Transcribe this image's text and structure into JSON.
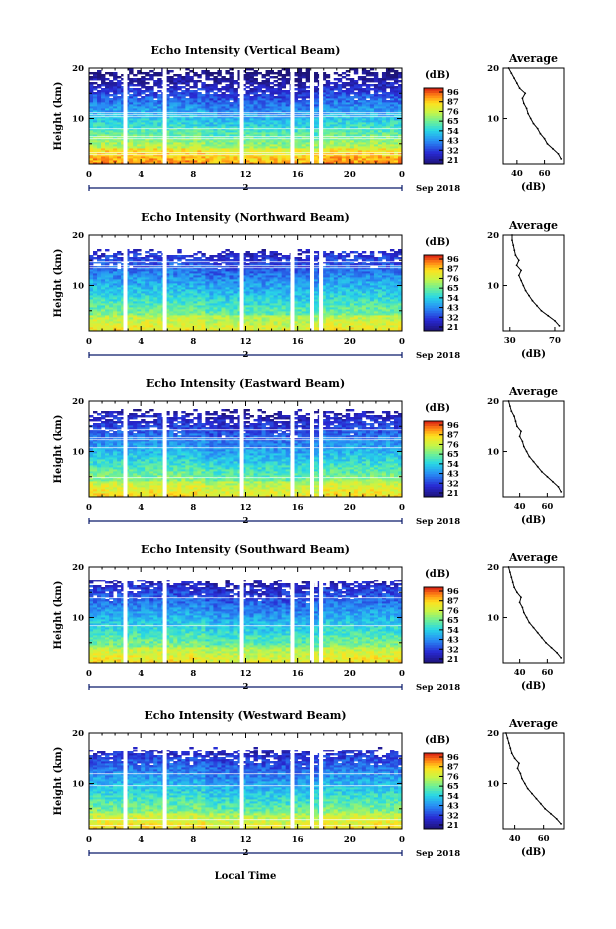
{
  "chart_data": [
    {
      "type": "heatmap",
      "title": "Echo Intensity (Vertical Beam)",
      "ylabel": "Height (km)",
      "xticks": [
        "0",
        "4",
        "8",
        "12",
        "16",
        "20",
        "0"
      ],
      "ylim": [
        1,
        20
      ],
      "yticks": [
        "10",
        "20"
      ],
      "date_marker": "2",
      "date_label": "Sep 2018",
      "colorbar": {
        "unit": "(dB)",
        "ticks": [
          "96",
          "87",
          "76",
          "65",
          "54",
          "43",
          "32",
          "21"
        ]
      },
      "gaps_hours": [
        2.8,
        5.8,
        11.7,
        15.6,
        17.1,
        17.8
      ],
      "profile": {
        "title": "Average",
        "xlabel": "(dB)",
        "xticks": [
          "40",
          "60"
        ],
        "xlim": [
          30,
          74
        ],
        "heights": [
          2,
          3,
          4,
          5,
          6,
          7,
          8,
          9,
          10,
          11,
          12,
          13,
          14,
          15,
          16,
          17,
          18,
          19,
          20
        ],
        "values": [
          72,
          70,
          66,
          62,
          60,
          57,
          55,
          52,
          50,
          48,
          47,
          45,
          44,
          46,
          42,
          40,
          38,
          36,
          34
        ]
      }
    },
    {
      "type": "heatmap",
      "title": "Echo Intensity (Northward Beam)",
      "ylabel": "Height (km)",
      "xticks": [
        "0",
        "4",
        "8",
        "12",
        "16",
        "20",
        "0"
      ],
      "ylim": [
        1,
        20
      ],
      "yticks": [
        "10",
        "20"
      ],
      "date_marker": "2",
      "date_label": "Sep 2018",
      "colorbar": {
        "unit": "(dB)",
        "ticks": [
          "96",
          "87",
          "76",
          "65",
          "54",
          "43",
          "32",
          "21"
        ]
      },
      "gaps_hours": [
        2.8,
        5.8,
        11.7,
        15.6,
        17.1,
        17.8
      ],
      "profile": {
        "title": "Average",
        "xlabel": "(dB)",
        "xticks": [
          "30",
          "70"
        ],
        "xlim": [
          24,
          78
        ],
        "heights": [
          2,
          3,
          4,
          5,
          6,
          7,
          8,
          9,
          10,
          11,
          12,
          13,
          14,
          15,
          16,
          17,
          18,
          19,
          20
        ],
        "values": [
          74,
          70,
          64,
          58,
          54,
          50,
          47,
          44,
          42,
          40,
          38,
          40,
          36,
          38,
          35,
          34,
          33,
          32,
          32
        ]
      }
    },
    {
      "type": "heatmap",
      "title": "Echo Intensity (Eastward Beam)",
      "ylabel": "Height (km)",
      "xticks": [
        "0",
        "4",
        "8",
        "12",
        "16",
        "20",
        "0"
      ],
      "ylim": [
        1,
        20
      ],
      "yticks": [
        "10",
        "20"
      ],
      "date_marker": "2",
      "date_label": "Sep 2018",
      "colorbar": {
        "unit": "(dB)",
        "ticks": [
          "96",
          "87",
          "76",
          "65",
          "54",
          "43",
          "32",
          "21"
        ]
      },
      "gaps_hours": [
        2.8,
        5.8,
        11.7,
        15.6,
        17.1,
        17.8
      ],
      "profile": {
        "title": "Average",
        "xlabel": "(dB)",
        "xticks": [
          "40",
          "60"
        ],
        "xlim": [
          28,
          72
        ],
        "heights": [
          2,
          3,
          4,
          5,
          6,
          7,
          8,
          9,
          10,
          11,
          12,
          13,
          14,
          15,
          16,
          17,
          18,
          19,
          20
        ],
        "values": [
          70,
          68,
          64,
          60,
          56,
          53,
          50,
          47,
          45,
          43,
          42,
          40,
          41,
          38,
          37,
          36,
          34,
          33,
          32
        ]
      }
    },
    {
      "type": "heatmap",
      "title": "Echo Intensity (Southward Beam)",
      "ylabel": "Height (km)",
      "xticks": [
        "0",
        "4",
        "8",
        "12",
        "16",
        "20",
        "0"
      ],
      "ylim": [
        1,
        20
      ],
      "yticks": [
        "10",
        "20"
      ],
      "date_marker": "2",
      "date_label": "Sep 2018",
      "colorbar": {
        "unit": "(dB)",
        "ticks": [
          "96",
          "87",
          "76",
          "65",
          "54",
          "43",
          "32",
          "21"
        ]
      },
      "gaps_hours": [
        2.8,
        5.8,
        11.7,
        15.6,
        17.1,
        17.8
      ],
      "profile": {
        "title": "Average",
        "xlabel": "(dB)",
        "xticks": [
          "40",
          "60"
        ],
        "xlim": [
          28,
          72
        ],
        "heights": [
          2,
          3,
          4,
          5,
          6,
          7,
          8,
          9,
          10,
          11,
          12,
          13,
          14,
          15,
          16,
          17,
          18,
          19,
          20
        ],
        "values": [
          70,
          67,
          63,
          59,
          56,
          53,
          50,
          47,
          45,
          43,
          42,
          40,
          41,
          38,
          36,
          35,
          34,
          33,
          32
        ]
      }
    },
    {
      "type": "heatmap",
      "title": "Echo Intensity (Westward Beam)",
      "ylabel": "Height (km)",
      "xticks": [
        "0",
        "4",
        "8",
        "12",
        "16",
        "20",
        "0"
      ],
      "ylim": [
        1,
        20
      ],
      "yticks": [
        "10",
        "20"
      ],
      "date_marker": "2",
      "date_label": "Sep 2018",
      "colorbar": {
        "unit": "(dB)",
        "ticks": [
          "96",
          "87",
          "76",
          "65",
          "54",
          "43",
          "32",
          "21"
        ]
      },
      "gaps_hours": [
        2.8,
        5.8,
        11.7,
        15.6,
        17.1,
        17.8
      ],
      "profile": {
        "title": "Average",
        "xlabel": "(dB)",
        "xticks": [
          "40",
          "60"
        ],
        "xlim": [
          32,
          74
        ],
        "heights": [
          2,
          3,
          4,
          5,
          6,
          7,
          8,
          9,
          10,
          11,
          12,
          13,
          14,
          15,
          16,
          17,
          18,
          19,
          20
        ],
        "values": [
          72,
          69,
          65,
          61,
          58,
          55,
          52,
          49,
          47,
          45,
          44,
          42,
          43,
          40,
          38,
          37,
          36,
          35,
          34
        ]
      }
    }
  ],
  "xlabel": "Local Time"
}
